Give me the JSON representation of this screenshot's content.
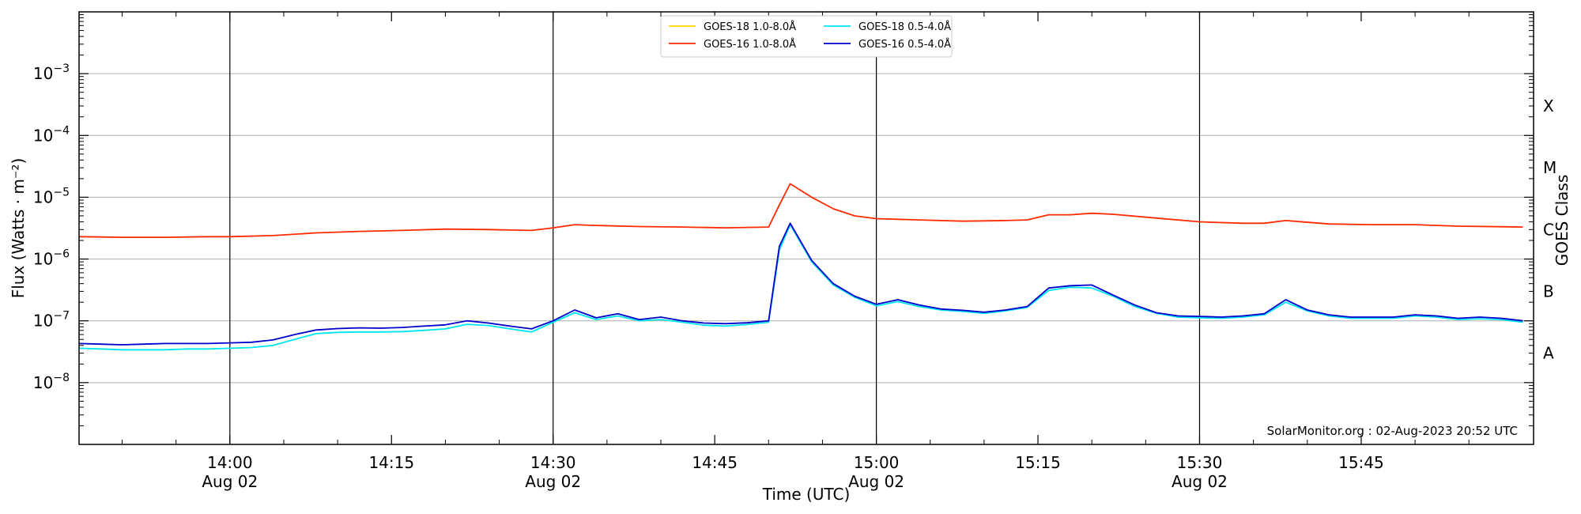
{
  "chart_data": {
    "type": "line",
    "xlabel": "Time (UTC)",
    "ylabel": "Flux (Watts · m⁻²)",
    "y2label": "GOES Class",
    "yscale": "log",
    "ylim": [
      1e-09,
      0.01
    ],
    "xlim": [
      "13:46",
      "16:01"
    ],
    "grid": "horizontal",
    "legend_position": "top-center",
    "watermark": "SolarMonitor.org : 02-Aug-2023 20:52 UTC",
    "x_ticks": [
      {
        "time": "14:00",
        "label": "14:00",
        "date": "Aug 02"
      },
      {
        "time": "14:15",
        "label": "14:15",
        "date": ""
      },
      {
        "time": "14:30",
        "label": "14:30",
        "date": "Aug 02"
      },
      {
        "time": "14:45",
        "label": "14:45",
        "date": ""
      },
      {
        "time": "15:00",
        "label": "15:00",
        "date": "Aug 02"
      },
      {
        "time": "15:15",
        "label": "15:15",
        "date": ""
      },
      {
        "time": "15:30",
        "label": "15:30",
        "date": "Aug 02"
      },
      {
        "time": "15:45",
        "label": "15:45",
        "date": ""
      }
    ],
    "vlines": [
      "14:00",
      "14:30",
      "15:00",
      "15:30"
    ],
    "y_ticks": [
      {
        "value": 1e-08,
        "base": "10",
        "exp": "−8"
      },
      {
        "value": 1e-07,
        "base": "10",
        "exp": "−7"
      },
      {
        "value": 1e-06,
        "base": "10",
        "exp": "−6"
      },
      {
        "value": 1e-05,
        "base": "10",
        "exp": "−5"
      },
      {
        "value": 0.0001,
        "base": "10",
        "exp": "−4"
      },
      {
        "value": 0.001,
        "base": "10",
        "exp": "−3"
      }
    ],
    "goes_classes": [
      {
        "label": "A",
        "value": 3e-08
      },
      {
        "label": "B",
        "value": 3e-07
      },
      {
        "label": "C",
        "value": 3e-06
      },
      {
        "label": "M",
        "value": 3e-05
      },
      {
        "label": "X",
        "value": 0.0003
      }
    ],
    "series": [
      {
        "name": "GOES-18 1.0-8.0Å",
        "color": "#ffd700",
        "times": [],
        "values": []
      },
      {
        "name": "GOES-18 0.5-4.0Å",
        "color": "#00e5ee",
        "times": [
          "13:46",
          "13:48",
          "13:50",
          "13:52",
          "13:54",
          "13:56",
          "13:58",
          "14:00",
          "14:02",
          "14:04",
          "14:06",
          "14:08",
          "14:10",
          "14:12",
          "14:14",
          "14:16",
          "14:18",
          "14:20",
          "14:22",
          "14:24",
          "14:26",
          "14:28",
          "14:30",
          "14:32",
          "14:34",
          "14:36",
          "14:38",
          "14:40",
          "14:42",
          "14:44",
          "14:46",
          "14:48",
          "14:50",
          "14:51",
          "14:52",
          "14:54",
          "14:56",
          "14:58",
          "15:00",
          "15:02",
          "15:04",
          "15:06",
          "15:08",
          "15:10",
          "15:12",
          "15:14",
          "15:16",
          "15:18",
          "15:20",
          "15:22",
          "15:24",
          "15:26",
          "15:28",
          "15:30",
          "15:32",
          "15:34",
          "15:36",
          "15:38",
          "15:40",
          "15:42",
          "15:44",
          "15:46",
          "15:48",
          "15:50",
          "15:52",
          "15:54",
          "15:56",
          "15:58",
          "16:00"
        ],
        "values": [
          3.6e-08,
          3.5e-08,
          3.4e-08,
          3.4e-08,
          3.4e-08,
          3.5e-08,
          3.5e-08,
          3.6e-08,
          3.7e-08,
          4e-08,
          5e-08,
          6.2e-08,
          6.5e-08,
          6.6e-08,
          6.6e-08,
          6.7e-08,
          7e-08,
          7.4e-08,
          8.8e-08,
          8.4e-08,
          7.4e-08,
          6.6e-08,
          9.5e-08,
          1.35e-07,
          1.05e-07,
          1.2e-07,
          1e-07,
          1.05e-07,
          9.5e-08,
          8.5e-08,
          8.2e-08,
          8.7e-08,
          9.5e-08,
          1.4e-06,
          3.6e-06,
          9e-07,
          3.8e-07,
          2.4e-07,
          1.75e-07,
          2.05e-07,
          1.7e-07,
          1.5e-07,
          1.42e-07,
          1.32e-07,
          1.45e-07,
          1.65e-07,
          3.1e-07,
          3.5e-07,
          3.4e-07,
          2.5e-07,
          1.7e-07,
          1.32e-07,
          1.15e-07,
          1.12e-07,
          1.1e-07,
          1.15e-07,
          1.25e-07,
          2e-07,
          1.45e-07,
          1.2e-07,
          1.1e-07,
          1.1e-07,
          1.1e-07,
          1.2e-07,
          1.15e-07,
          1.05e-07,
          1.08e-07,
          1.05e-07,
          9.5e-08
        ]
      },
      {
        "name": "GOES-16 1.0-8.0Å",
        "color": "#ff2a00",
        "times": [
          "13:46",
          "13:50",
          "13:54",
          "13:58",
          "14:00",
          "14:04",
          "14:08",
          "14:12",
          "14:16",
          "14:20",
          "14:24",
          "14:28",
          "14:30",
          "14:32",
          "14:34",
          "14:38",
          "14:42",
          "14:46",
          "14:50",
          "14:51",
          "14:52",
          "14:54",
          "14:56",
          "14:58",
          "15:00",
          "15:04",
          "15:08",
          "15:12",
          "15:14",
          "15:16",
          "15:18",
          "15:20",
          "15:22",
          "15:26",
          "15:30",
          "15:34",
          "15:36",
          "15:38",
          "15:42",
          "15:46",
          "15:50",
          "15:54",
          "16:00"
        ],
        "values": [
          2.3e-06,
          2.25e-06,
          2.25e-06,
          2.3e-06,
          2.3e-06,
          2.4e-06,
          2.65e-06,
          2.8e-06,
          2.9e-06,
          3.05e-06,
          3e-06,
          2.9e-06,
          3.2e-06,
          3.6e-06,
          3.5e-06,
          3.35e-06,
          3.3e-06,
          3.2e-06,
          3.3e-06,
          7.5e-06,
          1.65e-05,
          1e-05,
          6.5e-06,
          5e-06,
          4.5e-06,
          4.3e-06,
          4.1e-06,
          4.2e-06,
          4.3e-06,
          5.2e-06,
          5.2e-06,
          5.5e-06,
          5.3e-06,
          4.6e-06,
          4e-06,
          3.8e-06,
          3.8e-06,
          4.2e-06,
          3.7e-06,
          3.6e-06,
          3.6e-06,
          3.4e-06,
          3.3e-06
        ]
      },
      {
        "name": "GOES-16 0.5-4.0Å",
        "color": "#0000cd",
        "times": [
          "13:46",
          "13:48",
          "13:50",
          "13:52",
          "13:54",
          "13:56",
          "13:58",
          "14:00",
          "14:02",
          "14:04",
          "14:06",
          "14:08",
          "14:10",
          "14:12",
          "14:14",
          "14:16",
          "14:18",
          "14:20",
          "14:22",
          "14:24",
          "14:26",
          "14:28",
          "14:30",
          "14:32",
          "14:34",
          "14:36",
          "14:38",
          "14:40",
          "14:42",
          "14:44",
          "14:46",
          "14:48",
          "14:50",
          "14:51",
          "14:52",
          "14:54",
          "14:56",
          "14:58",
          "15:00",
          "15:02",
          "15:04",
          "15:06",
          "15:08",
          "15:10",
          "15:12",
          "15:14",
          "15:16",
          "15:18",
          "15:20",
          "15:22",
          "15:24",
          "15:26",
          "15:28",
          "15:30",
          "15:32",
          "15:34",
          "15:36",
          "15:38",
          "15:40",
          "15:42",
          "15:44",
          "15:46",
          "15:48",
          "15:50",
          "15:52",
          "15:54",
          "15:56",
          "15:58",
          "16:00"
        ],
        "values": [
          4.3e-08,
          4.2e-08,
          4.1e-08,
          4.2e-08,
          4.3e-08,
          4.3e-08,
          4.3e-08,
          4.4e-08,
          4.5e-08,
          4.9e-08,
          6e-08,
          7.1e-08,
          7.5e-08,
          7.7e-08,
          7.6e-08,
          7.8e-08,
          8.2e-08,
          8.6e-08,
          1e-07,
          9.2e-08,
          8.2e-08,
          7.4e-08,
          1e-07,
          1.5e-07,
          1.12e-07,
          1.3e-07,
          1.05e-07,
          1.15e-07,
          1e-07,
          9.2e-08,
          9e-08,
          9.3e-08,
          1e-07,
          1.6e-06,
          3.8e-06,
          9.5e-07,
          4e-07,
          2.5e-07,
          1.85e-07,
          2.2e-07,
          1.8e-07,
          1.55e-07,
          1.48e-07,
          1.38e-07,
          1.5e-07,
          1.7e-07,
          3.4e-07,
          3.7e-07,
          3.8e-07,
          2.6e-07,
          1.8e-07,
          1.35e-07,
          1.2e-07,
          1.18e-07,
          1.15e-07,
          1.2e-07,
          1.3e-07,
          2.2e-07,
          1.5e-07,
          1.25e-07,
          1.15e-07,
          1.15e-07,
          1.15e-07,
          1.25e-07,
          1.2e-07,
          1.1e-07,
          1.15e-07,
          1.1e-07,
          1e-07
        ]
      }
    ]
  }
}
